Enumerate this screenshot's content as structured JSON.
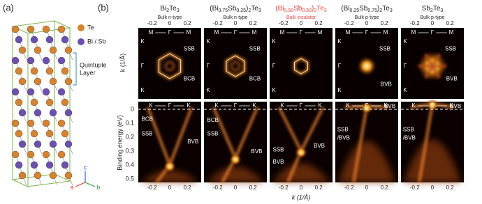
{
  "panel_a": {
    "label": "(a)",
    "legend": [
      {
        "label": "Te",
        "color": "#d9822b"
      },
      {
        "label": "Bi / Sb",
        "color": "#6b4fb3"
      }
    ],
    "bracket_label": [
      "Quintuple",
      "Layer"
    ],
    "axes": [
      {
        "label": "c",
        "color": "#3a5fcd"
      },
      {
        "label": "a",
        "color": "#e23b2e"
      },
      {
        "label": "b",
        "color": "#3aa64a"
      }
    ]
  },
  "panel_b": {
    "label": "(b)",
    "top_axis": {
      "ticks": [
        "-0.2",
        "0",
        "0.2"
      ],
      "label": "k (1/Å)"
    },
    "bottom_axis": {
      "ticks": [
        "-0.2",
        "0",
        "0.2"
      ],
      "label": "k (1/Å)"
    },
    "energy_axis": {
      "ticks": [
        "0",
        "0.1",
        "0.2",
        "0.3",
        "0.4",
        "0.5"
      ],
      "label": "Binding energy (eV)"
    },
    "top_directions": [
      "M",
      "Γ",
      "M"
    ],
    "side_directions": [
      "K",
      "Γ",
      "K"
    ],
    "bottom_directions": [
      "K",
      "Γ",
      "K"
    ],
    "columns": [
      {
        "title": [
          {
            "text": "Bi"
          },
          {
            "text": "2",
            "sub": true
          },
          {
            "text": "Te"
          },
          {
            "text": "3",
            "sub": true
          }
        ],
        "subtitle": "Bulk n-type",
        "color": "#222222",
        "top_labels": [
          "SSB",
          "BCB"
        ],
        "bottom_labels": [
          "BCB",
          "SSB",
          "BVB"
        ]
      },
      {
        "title": [
          {
            "text": "(Bi"
          },
          {
            "text": "0.75",
            "sub": true
          },
          {
            "text": "Sb"
          },
          {
            "text": "0.25",
            "sub": true
          },
          {
            "text": ")"
          },
          {
            "text": "2",
            "sub": true
          },
          {
            "text": "Te"
          },
          {
            "text": "3",
            "sub": true
          }
        ],
        "subtitle": "Bulk n-type",
        "color": "#222222",
        "top_labels": [
          "SSB",
          "BCB"
        ],
        "bottom_labels": [
          "BCB",
          "SSB",
          "BVB"
        ]
      },
      {
        "title": [
          {
            "text": "(Bi"
          },
          {
            "text": "0.50",
            "sub": true
          },
          {
            "text": "Sb"
          },
          {
            "text": "0.50",
            "sub": true
          },
          {
            "text": ")"
          },
          {
            "text": "2",
            "sub": true
          },
          {
            "text": "Te"
          },
          {
            "text": "3",
            "sub": true
          }
        ],
        "subtitle": "Bulk insulator",
        "color": "#e8423b",
        "top_labels": [],
        "bottom_labels": [
          "SSB",
          "BVB",
          "BVB"
        ]
      },
      {
        "title": [
          {
            "text": "(Bi"
          },
          {
            "text": "0.25",
            "sub": true
          },
          {
            "text": "Sb"
          },
          {
            "text": "0.75",
            "sub": true
          },
          {
            "text": ")"
          },
          {
            "text": "2",
            "sub": true
          },
          {
            "text": "Te"
          },
          {
            "text": "3",
            "sub": true
          }
        ],
        "subtitle": "Bulk p-type",
        "color": "#222222",
        "top_labels": [
          "SSB",
          "BVB"
        ],
        "bottom_labels": [
          "SSB",
          "/BVB",
          "BVB"
        ]
      },
      {
        "title": [
          {
            "text": "Sb"
          },
          {
            "text": "2",
            "sub": true
          },
          {
            "text": "Te"
          },
          {
            "text": "3",
            "sub": true
          }
        ],
        "subtitle": "Bulk p-type",
        "color": "#222222",
        "top_labels": [
          "SSB",
          "BVB"
        ],
        "bottom_labels": [
          "SSB",
          "/BVB",
          "BVB"
        ]
      }
    ]
  }
}
